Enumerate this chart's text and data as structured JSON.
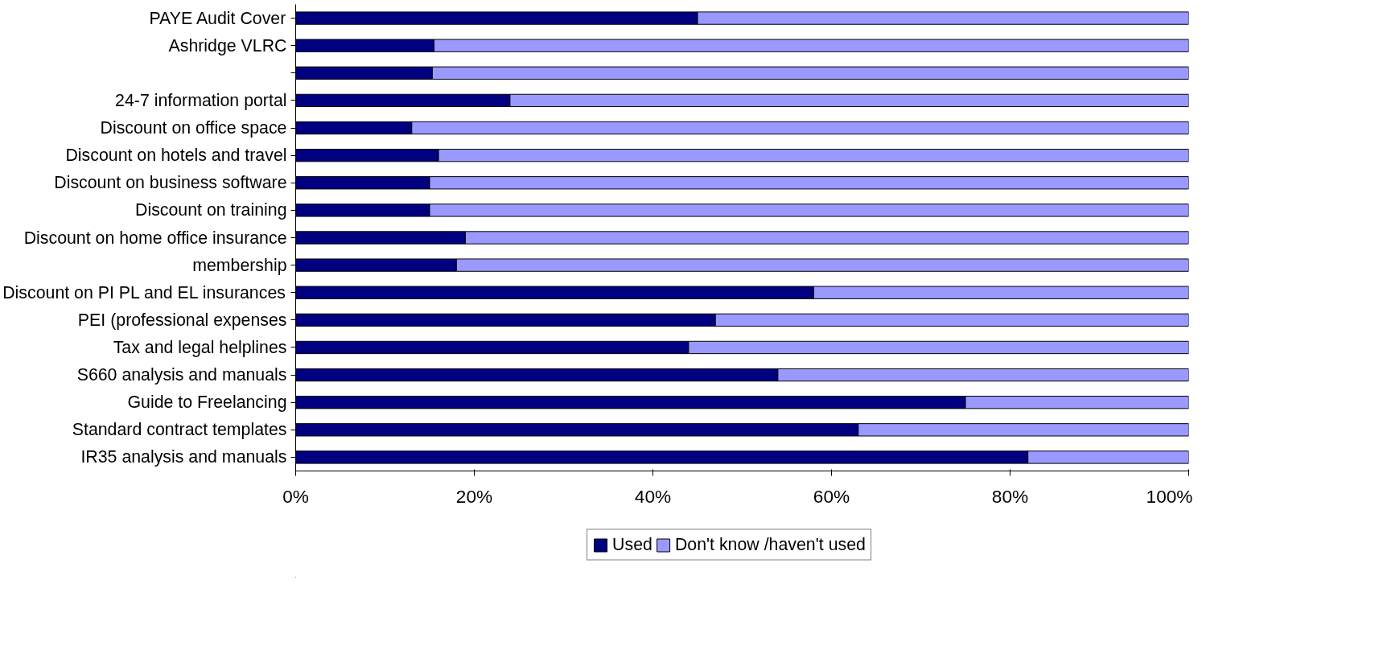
{
  "chart_data": {
    "type": "bar",
    "orientation": "horizontal",
    "stacked": true,
    "categories": [
      "PAYE Audit Cover",
      "Ashridge VLRC",
      null,
      "24-7 information portal",
      "Discount on office space",
      "Discount on hotels and travel",
      "Discount on business software",
      "Discount on training",
      "Discount on home office insurance",
      "membership",
      "Discount on PI PL and EL insurances",
      "PEI (professional expenses",
      "Tax and legal helplines",
      "S660 analysis and manuals",
      "Guide to Freelancing",
      "Standard contract templates",
      "IR35 analysis and manuals"
    ],
    "series": [
      {
        "name": "Used",
        "color": "#000080",
        "values": [
          45,
          15.5,
          15.3,
          24,
          13,
          16,
          15,
          15,
          19,
          18,
          58,
          47,
          44,
          54,
          75,
          63,
          82
        ]
      },
      {
        "name": "Don't know /haven't used",
        "color": "#9999ff",
        "values": [
          55,
          84.5,
          84.7,
          76,
          87,
          84,
          85,
          85,
          81,
          82,
          42,
          53,
          56,
          46,
          25,
          37,
          18
        ]
      }
    ],
    "xlim": [
      0,
      100
    ],
    "xticks": [
      {
        "value": 0,
        "label": "0%"
      },
      {
        "value": 20,
        "label": "20%"
      },
      {
        "value": 40,
        "label": "40%"
      },
      {
        "value": 60,
        "label": "60%"
      },
      {
        "value": 80,
        "label": "80%"
      },
      {
        "value": 100,
        "label": "100%"
      }
    ],
    "grid": false,
    "legend": "bottom"
  }
}
